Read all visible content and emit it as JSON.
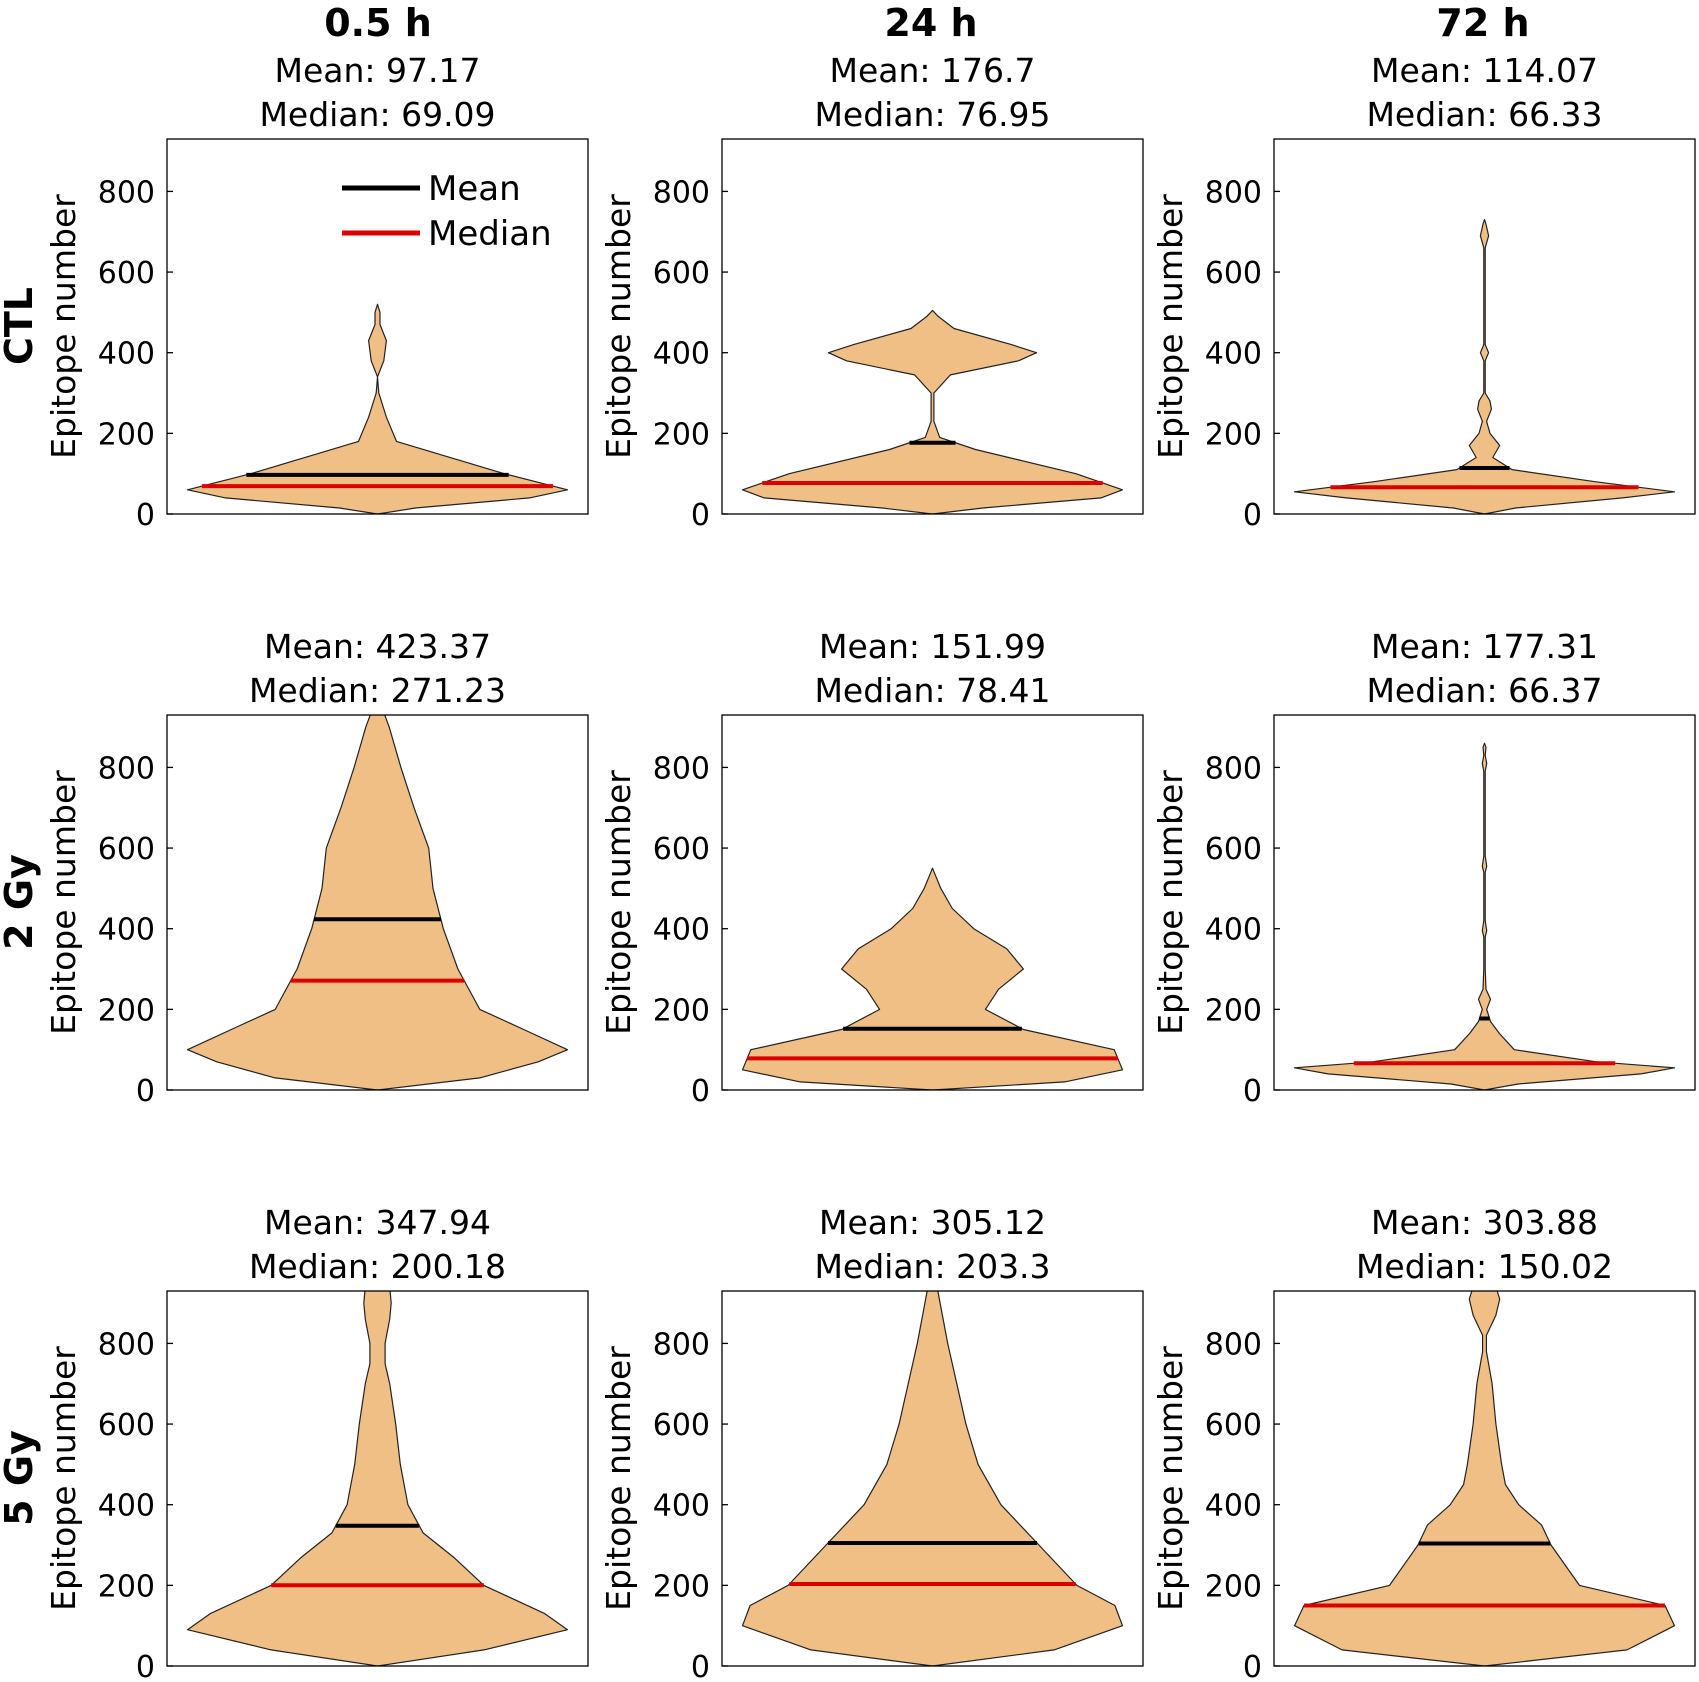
{
  "colors": {
    "violin_fill": "#f0bf86",
    "violin_stroke": "#222222",
    "mean": "#000000",
    "median": "#dd0000",
    "axis": "#000000"
  },
  "column_titles": [
    "0.5 h",
    "24 h",
    "72 h"
  ],
  "row_labels": [
    "CTL",
    "2 Gy",
    "5 Gy"
  ],
  "ylabel": "Epitope number",
  "legend": {
    "mean_label": "Mean",
    "median_label": "Median"
  },
  "chart_data": [
    {
      "type": "violin",
      "row": "CTL",
      "column": "0.5 h",
      "title_mean": "Mean: 97.17",
      "title_median": "Median: 69.09",
      "mean": 97.17,
      "median": 69.09,
      "ylim": [
        0,
        930
      ],
      "yticks": [
        "0",
        "200",
        "400",
        "600",
        "800"
      ],
      "violin_profile": [
        [
          0,
          0
        ],
        [
          15,
          60
        ],
        [
          40,
          240
        ],
        [
          60,
          300
        ],
        [
          100,
          200
        ],
        [
          180,
          30
        ],
        [
          240,
          14
        ],
        [
          300,
          2
        ],
        [
          340,
          0
        ],
        [
          380,
          10
        ],
        [
          430,
          14
        ],
        [
          470,
          4
        ],
        [
          500,
          4
        ],
        [
          520,
          0
        ]
      ]
    },
    {
      "type": "violin",
      "row": "CTL",
      "column": "24 h",
      "title_mean": "Mean: 176.7",
      "title_median": "Median: 76.95",
      "mean": 176.7,
      "median": 76.95,
      "ylim": [
        0,
        930
      ],
      "yticks": [
        "0",
        "200",
        "400",
        "600",
        "800"
      ],
      "violin_profile": [
        [
          0,
          0
        ],
        [
          15,
          70
        ],
        [
          40,
          235
        ],
        [
          60,
          265
        ],
        [
          100,
          200
        ],
        [
          160,
          60
        ],
        [
          190,
          10
        ],
        [
          230,
          2
        ],
        [
          300,
          2
        ],
        [
          345,
          25
        ],
        [
          380,
          120
        ],
        [
          400,
          145
        ],
        [
          420,
          110
        ],
        [
          460,
          30
        ],
        [
          490,
          8
        ],
        [
          505,
          0
        ]
      ]
    },
    {
      "type": "violin",
      "row": "CTL",
      "column": "72 h",
      "title_mean": "Mean: 114.07",
      "title_median": "Median: 66.33",
      "mean": 114.07,
      "median": 66.33,
      "ylim": [
        0,
        930
      ],
      "yticks": [
        "0",
        "200",
        "400",
        "600",
        "800"
      ],
      "violin_profile": [
        [
          0,
          0
        ],
        [
          15,
          45
        ],
        [
          40,
          200
        ],
        [
          55,
          275
        ],
        [
          80,
          160
        ],
        [
          110,
          40
        ],
        [
          140,
          12
        ],
        [
          170,
          22
        ],
        [
          200,
          8
        ],
        [
          230,
          3
        ],
        [
          260,
          10
        ],
        [
          280,
          8
        ],
        [
          300,
          1
        ],
        [
          380,
          1
        ],
        [
          400,
          6
        ],
        [
          420,
          1
        ],
        [
          660,
          1
        ],
        [
          690,
          6
        ],
        [
          720,
          2
        ],
        [
          730,
          0
        ]
      ]
    },
    {
      "type": "violin",
      "row": "2 Gy",
      "column": "0.5 h",
      "title_mean": "Mean: 423.37",
      "title_median": "Median: 271.23",
      "mean": 423.37,
      "median": 271.23,
      "ylim": [
        0,
        930
      ],
      "yticks": [
        "0",
        "200",
        "400",
        "600",
        "800"
      ],
      "violin_profile": [
        [
          0,
          0
        ],
        [
          30,
          70
        ],
        [
          70,
          110
        ],
        [
          100,
          130
        ],
        [
          150,
          100
        ],
        [
          200,
          70
        ],
        [
          300,
          55
        ],
        [
          400,
          45
        ],
        [
          500,
          38
        ],
        [
          600,
          35
        ],
        [
          700,
          25
        ],
        [
          800,
          16
        ],
        [
          900,
          8
        ],
        [
          940,
          4
        ]
      ]
    },
    {
      "type": "violin",
      "row": "2 Gy",
      "column": "24 h",
      "title_mean": "Mean: 151.99",
      "title_median": "Median: 78.41",
      "mean": 151.99,
      "median": 78.41,
      "ylim": [
        0,
        930
      ],
      "yticks": [
        "0",
        "200",
        "400",
        "600",
        "800"
      ],
      "violin_profile": [
        [
          0,
          0
        ],
        [
          20,
          80
        ],
        [
          50,
          115
        ],
        [
          100,
          110
        ],
        [
          150,
          55
        ],
        [
          200,
          32
        ],
        [
          250,
          40
        ],
        [
          300,
          55
        ],
        [
          350,
          45
        ],
        [
          400,
          25
        ],
        [
          450,
          12
        ],
        [
          500,
          5
        ],
        [
          550,
          0
        ]
      ]
    },
    {
      "type": "violin",
      "row": "2 Gy",
      "column": "72 h",
      "title_mean": "Mean: 177.31",
      "title_median": "Median: 66.37",
      "mean": 177.31,
      "median": 66.37,
      "ylim": [
        0,
        930
      ],
      "yticks": [
        "0",
        "200",
        "400",
        "600",
        "800"
      ],
      "violin_profile": [
        [
          0,
          0
        ],
        [
          15,
          45
        ],
        [
          40,
          210
        ],
        [
          55,
          255
        ],
        [
          70,
          150
        ],
        [
          100,
          40
        ],
        [
          140,
          20
        ],
        [
          170,
          8
        ],
        [
          200,
          3
        ],
        [
          225,
          8
        ],
        [
          250,
          2
        ],
        [
          300,
          1
        ],
        [
          380,
          1
        ],
        [
          395,
          3
        ],
        [
          420,
          1
        ],
        [
          540,
          1
        ],
        [
          555,
          3
        ],
        [
          580,
          1
        ],
        [
          790,
          1
        ],
        [
          810,
          3
        ],
        [
          830,
          1
        ],
        [
          850,
          2
        ],
        [
          860,
          0
        ]
      ]
    },
    {
      "type": "violin",
      "row": "5 Gy",
      "column": "0.5 h",
      "title_mean": "Mean: 347.94",
      "title_median": "Median: 200.18",
      "mean": 347.94,
      "median": 200.18,
      "ylim": [
        0,
        930
      ],
      "yticks": [
        "0",
        "200",
        "400",
        "600",
        "800"
      ],
      "violin_profile": [
        [
          0,
          0
        ],
        [
          40,
          70
        ],
        [
          90,
          125
        ],
        [
          130,
          110
        ],
        [
          200,
          70
        ],
        [
          270,
          50
        ],
        [
          330,
          30
        ],
        [
          400,
          20
        ],
        [
          500,
          15
        ],
        [
          600,
          12
        ],
        [
          700,
          8
        ],
        [
          750,
          5
        ],
        [
          800,
          5
        ],
        [
          860,
          8
        ],
        [
          900,
          9
        ],
        [
          940,
          8
        ]
      ]
    },
    {
      "type": "violin",
      "row": "5 Gy",
      "column": "24 h",
      "title_mean": "Mean: 305.12",
      "title_median": "Median: 203.3",
      "mean": 305.12,
      "median": 203.3,
      "ylim": [
        0,
        930
      ],
      "yticks": [
        "0",
        "200",
        "400",
        "600",
        "800"
      ],
      "violin_profile": [
        [
          0,
          0
        ],
        [
          40,
          80
        ],
        [
          100,
          125
        ],
        [
          150,
          120
        ],
        [
          200,
          95
        ],
        [
          300,
          70
        ],
        [
          400,
          45
        ],
        [
          500,
          30
        ],
        [
          600,
          22
        ],
        [
          700,
          16
        ],
        [
          800,
          10
        ],
        [
          900,
          5
        ],
        [
          940,
          3
        ]
      ]
    },
    {
      "type": "violin",
      "row": "5 Gy",
      "column": "72 h",
      "title_mean": "Mean: 303.88",
      "title_median": "Median: 150.02",
      "mean": 303.88,
      "median": 150.02,
      "ylim": [
        0,
        930
      ],
      "yticks": [
        "0",
        "200",
        "400",
        "600",
        "800"
      ],
      "violin_profile": [
        [
          0,
          0
        ],
        [
          40,
          75
        ],
        [
          100,
          100
        ],
        [
          150,
          95
        ],
        [
          200,
          50
        ],
        [
          300,
          35
        ],
        [
          350,
          30
        ],
        [
          400,
          18
        ],
        [
          450,
          11
        ],
        [
          500,
          9
        ],
        [
          600,
          6
        ],
        [
          700,
          4
        ],
        [
          780,
          1
        ],
        [
          820,
          1
        ],
        [
          870,
          6
        ],
        [
          910,
          8
        ],
        [
          940,
          6
        ]
      ]
    }
  ]
}
